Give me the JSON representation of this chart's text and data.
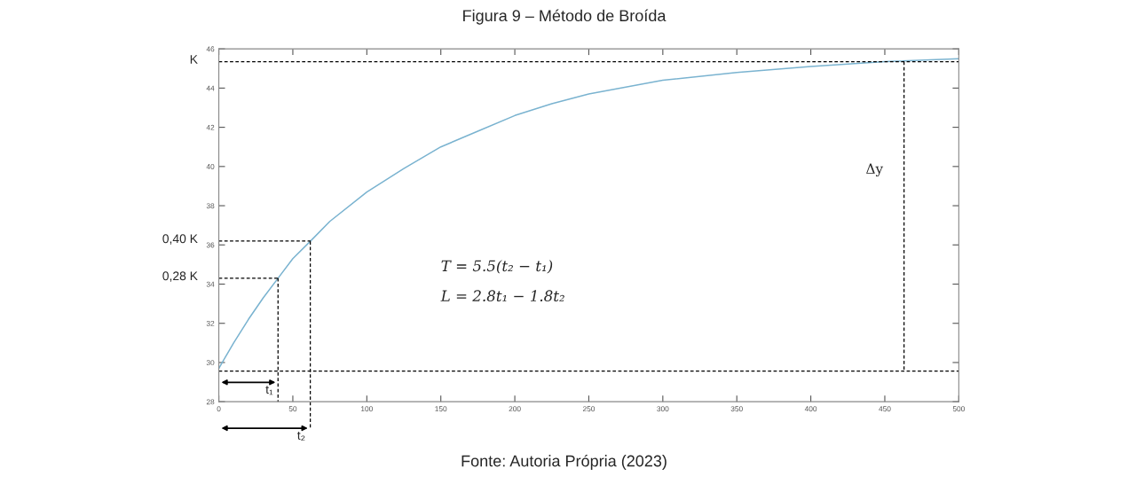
{
  "chart_data": {
    "type": "line",
    "title": "Figura 9 – Método de Broída",
    "x": [
      0,
      10,
      20,
      30,
      40,
      50,
      62,
      75,
      100,
      125,
      150,
      175,
      200,
      225,
      250,
      300,
      350,
      400,
      450,
      500
    ],
    "series": [
      {
        "color": "#7ab3d0",
        "values": [
          29.7,
          31.0,
          32.2,
          33.3,
          34.3,
          35.3,
          36.2,
          37.2,
          38.7,
          39.9,
          41.0,
          41.8,
          42.6,
          43.2,
          43.7,
          44.4,
          44.8,
          45.1,
          45.35,
          45.5
        ]
      }
    ],
    "xlim": [
      0,
      500
    ],
    "xticks": [
      0,
      50,
      100,
      150,
      200,
      250,
      300,
      350,
      400,
      450,
      500
    ],
    "ylim": [
      28,
      46
    ],
    "yticks": [
      28,
      30,
      32,
      34,
      36,
      38,
      40,
      42,
      44,
      46
    ],
    "grid": false,
    "marker": "none",
    "line_style": "solid",
    "ref_lines": [
      {
        "axis": "y",
        "value": 45.35,
        "label": "K",
        "color": "#000000",
        "line_style": "dashed"
      },
      {
        "axis": "y",
        "value": 36.2,
        "label": "0,40 K",
        "color": "#000000",
        "line_style": "dashed"
      },
      {
        "axis": "y",
        "value": 34.3,
        "label": "0,28 K",
        "color": "#000000",
        "line_style": "dashed"
      },
      {
        "axis": "y",
        "value": 29.56,
        "color": "#000000",
        "line_style": "dashed"
      },
      {
        "axis": "x",
        "value": 40,
        "label": "t₁",
        "color": "#000000",
        "line_style": "dashed"
      },
      {
        "axis": "x",
        "value": 61.8,
        "label": "t₂",
        "color": "#000000",
        "line_style": "dashed"
      },
      {
        "axis": "x",
        "value": 463,
        "label": "Δy",
        "color": "#000000",
        "line_style": "dashed"
      }
    ],
    "annotations": [
      "T = 5.5(t₂ − t₁)",
      "L = 2.8t₁ − 1.8t₂",
      "Fonte: Autoria Própria (2023)"
    ]
  }
}
